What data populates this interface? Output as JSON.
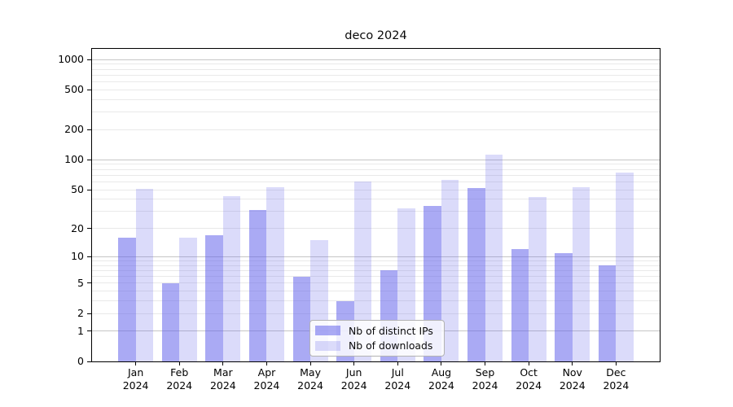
{
  "figure": {
    "background": "#ffffff"
  },
  "chart_data": {
    "type": "bar",
    "title": "deco 2024",
    "categories": [
      "Jan",
      "Feb",
      "Mar",
      "Apr",
      "May",
      "Jun",
      "Jul",
      "Aug",
      "Sep",
      "Oct",
      "Nov",
      "Dec"
    ],
    "category_year": "2024",
    "series": [
      {
        "name": "Nb of distinct IPs",
        "color": "rgba(100,100,235,0.55)",
        "values": [
          16,
          5,
          17,
          31,
          6,
          3,
          7,
          34,
          52,
          12,
          11,
          8
        ]
      },
      {
        "name": "Nb of downloads",
        "color": "rgba(100,100,235,0.23)",
        "values": [
          51,
          16,
          43,
          53,
          15,
          61,
          32,
          63,
          112,
          42,
          53,
          75
        ]
      }
    ],
    "y_ticks": [
      0,
      1,
      2,
      5,
      10,
      20,
      50,
      100,
      200,
      500,
      1000
    ],
    "y_minor_gridlines": [
      2,
      3,
      4,
      5,
      6,
      7,
      8,
      9,
      20,
      30,
      40,
      50,
      60,
      70,
      80,
      90,
      200,
      300,
      400,
      500,
      600,
      700,
      800,
      900
    ],
    "y_major_gridlines": [
      1,
      10,
      100,
      1000
    ],
    "y_scale": "log10(1+v)",
    "ylim": [
      0,
      1282
    ],
    "grid": "on",
    "legend_position": "lower center"
  },
  "colors": {
    "grid_major": "#c6c6c6",
    "grid_minor": "#e9e9e9",
    "spine": "#000000",
    "bar_distinct_ips": "rgba(100,100,235,0.55)",
    "bar_downloads": "rgba(100,100,235,0.23)"
  }
}
